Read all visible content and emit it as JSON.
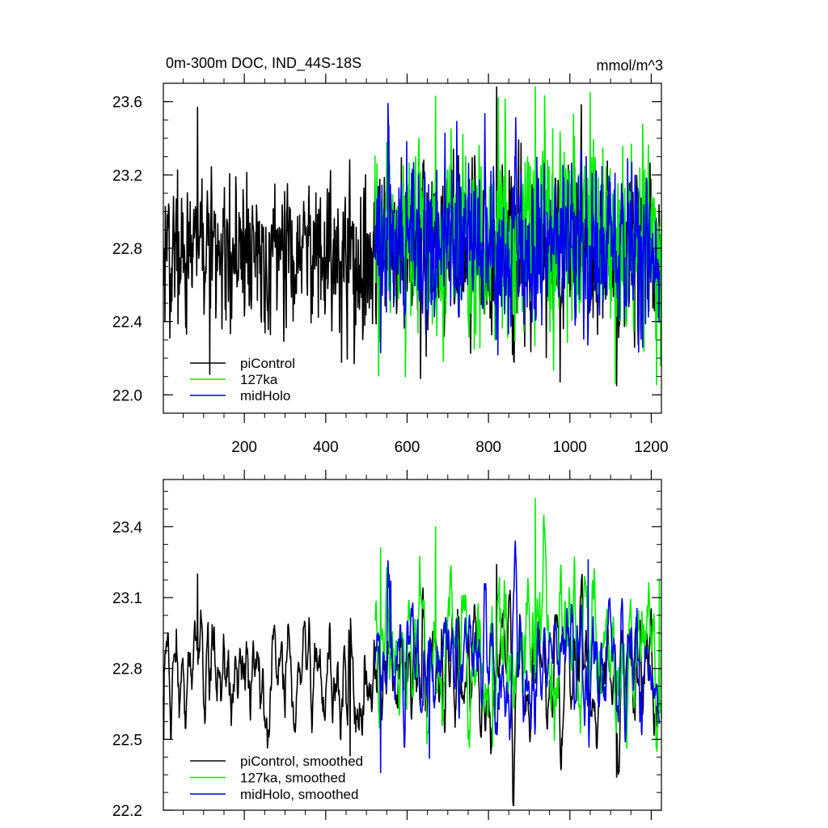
{
  "chart_data": [
    {
      "type": "line",
      "title": "0m-300m DOC, IND_44S-18S",
      "units": "mmol/m^3",
      "xlim": [
        1,
        1225
      ],
      "ylim": [
        21.9,
        23.7
      ],
      "x_ticks": [
        200,
        400,
        600,
        800,
        1000,
        1200
      ],
      "y_ticks": [
        22.0,
        22.4,
        22.8,
        23.2,
        23.6
      ],
      "y_tick_labels": [
        "22.0",
        "22.4",
        "22.8",
        "23.2",
        "23.6"
      ],
      "legend_position": "bottom-left",
      "series": [
        {
          "name": "piControl",
          "color": "#000000",
          "x_start": 1,
          "x_end": 1220,
          "mean": 22.78,
          "amplitude": 0.2,
          "seed": 11,
          "values_note_points": [
            [
              5,
              22.4
            ],
            [
              85,
              23.57
            ],
            [
              470,
              22.17
            ],
            [
              820,
              23.68
            ],
            [
              1115,
              22.05
            ]
          ]
        },
        {
          "name": "127ka",
          "color": "#00ee00",
          "x_start": 521,
          "x_end": 1225,
          "mean": 22.86,
          "amplitude": 0.25,
          "seed": 23,
          "values_note_points": [
            [
              670,
              23.63
            ],
            [
              915,
              23.68
            ],
            [
              1050,
              23.65
            ],
            [
              765,
              22.25
            ]
          ]
        },
        {
          "name": "midHolo",
          "color": "#0000ee",
          "x_start": 521,
          "x_end": 1220,
          "mean": 22.8,
          "amplitude": 0.2,
          "seed": 37,
          "values_note_points": [
            [
              553,
              23.59
            ],
            [
              535,
              22.23
            ],
            [
              1040,
              23.3
            ]
          ]
        }
      ]
    },
    {
      "type": "line",
      "xlim": [
        1,
        1225
      ],
      "ylim": [
        22.2,
        23.6
      ],
      "x_ticks": [
        200,
        400,
        600,
        800,
        1000,
        1200
      ],
      "y_ticks": [
        22.2,
        22.5,
        22.8,
        23.1,
        23.4
      ],
      "y_tick_labels": [
        "22.2",
        "22.5",
        "22.8",
        "23.1",
        "23.4"
      ],
      "legend_position": "bottom-left",
      "series": [
        {
          "name": "piControl, smoothed",
          "color": "#000000",
          "x_start": 1,
          "x_end": 1220,
          "mean": 22.78,
          "amplitude": 0.14,
          "seed": 11,
          "values_note_points": [
            [
              2,
              22.5
            ],
            [
              85,
              23.2
            ],
            [
              460,
              22.43
            ],
            [
              820,
              23.24
            ],
            [
              1115,
              22.34
            ]
          ]
        },
        {
          "name": "127ka, smoothed",
          "color": "#00ee00",
          "x_start": 521,
          "x_end": 1225,
          "mean": 22.88,
          "amplitude": 0.17,
          "seed": 23,
          "values_note_points": [
            [
              535,
              23.31
            ],
            [
              670,
              23.4
            ],
            [
              915,
              23.52
            ],
            [
              1220,
              23.18
            ],
            [
              810,
              22.47
            ]
          ]
        },
        {
          "name": "midHolo, smoothed",
          "color": "#0000ee",
          "x_start": 521,
          "x_end": 1220,
          "mean": 22.81,
          "amplitude": 0.13,
          "seed": 37,
          "values_note_points": [
            [
              535,
              22.36
            ],
            [
              560,
              23.17
            ],
            [
              655,
              22.42
            ],
            [
              1045,
              23.26
            ]
          ]
        }
      ]
    }
  ]
}
